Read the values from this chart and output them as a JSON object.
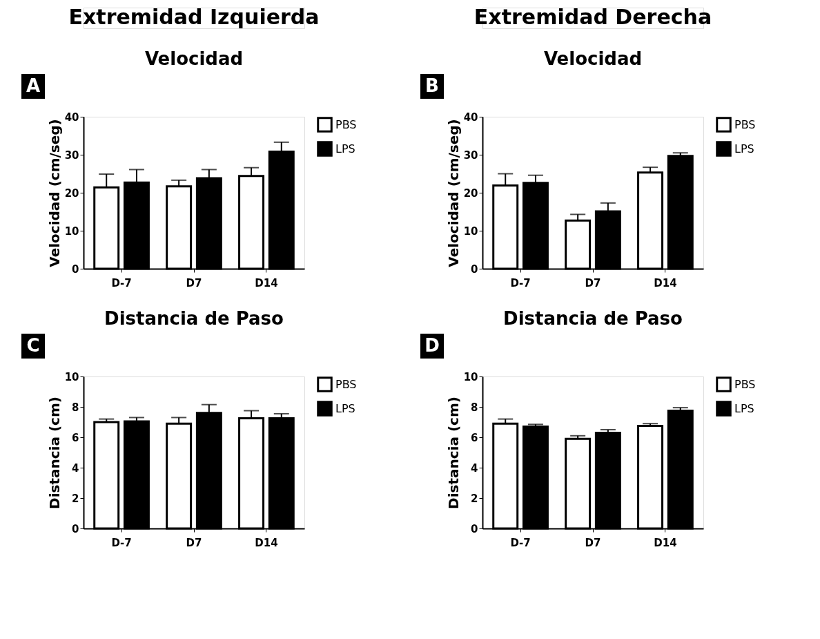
{
  "chart_data": [
    {
      "type": "bar",
      "title": "Velocidad",
      "annotations": [
        "Extremidad Izquierda",
        "A"
      ],
      "ylabel": "Velocidad (cm/seg)",
      "categories": [
        "D-7",
        "D7",
        "D14"
      ],
      "ylim": [
        0,
        40
      ],
      "yticks": [
        0,
        10,
        20,
        30,
        40
      ],
      "grid": false,
      "legend": "top right",
      "series": [
        {
          "name": "PBS",
          "color": "#ffffff",
          "values": [
            21.4,
            21.7,
            24.4
          ],
          "errors": [
            [
              21.4,
              24.9
            ],
            [
              21.7,
              23.3
            ],
            [
              24.4,
              26.6
            ]
          ]
        },
        {
          "name": "LPS",
          "color": "#000000",
          "values": [
            22.7,
            23.8,
            30.8
          ],
          "errors": [
            [
              22.7,
              26.1
            ],
            [
              23.8,
              26.1
            ],
            [
              30.8,
              33.3
            ]
          ]
        }
      ]
    },
    {
      "type": "bar",
      "title": "Velocidad",
      "annotations": [
        "Extremidad Derecha",
        "B"
      ],
      "ylabel": "Velocidad (cm/seg)",
      "categories": [
        "D-7",
        "D7",
        "D14"
      ],
      "ylim": [
        0,
        40
      ],
      "yticks": [
        0,
        10,
        20,
        30,
        40
      ],
      "grid": false,
      "legend": "top right",
      "series": [
        {
          "name": "PBS",
          "color": "#ffffff",
          "values": [
            21.9,
            12.7,
            25.3
          ],
          "errors": [
            [
              21.9,
              25.0
            ],
            [
              12.7,
              14.3
            ],
            [
              25.3,
              26.7
            ]
          ]
        },
        {
          "name": "LPS",
          "color": "#000000",
          "values": [
            22.6,
            15.1,
            29.7
          ],
          "errors": [
            [
              22.6,
              24.6
            ],
            [
              15.1,
              17.3
            ],
            [
              29.7,
              30.5
            ]
          ]
        }
      ]
    },
    {
      "type": "bar",
      "title": "Distancia de Paso",
      "annotations": [
        "C"
      ],
      "ylabel": "Distancia (cm)",
      "categories": [
        "D-7",
        "D7",
        "D14"
      ],
      "ylim": [
        0,
        10
      ],
      "yticks": [
        0,
        2,
        4,
        6,
        8,
        10
      ],
      "grid": false,
      "legend": "top right",
      "series": [
        {
          "name": "PBS",
          "color": "#ffffff",
          "values": [
            7.0,
            6.9,
            7.25
          ],
          "errors": [
            [
              7.0,
              7.2
            ],
            [
              6.9,
              7.3
            ],
            [
              7.25,
              7.75
            ]
          ]
        },
        {
          "name": "LPS",
          "color": "#000000",
          "values": [
            7.05,
            7.6,
            7.25
          ],
          "errors": [
            [
              7.05,
              7.3
            ],
            [
              7.6,
              8.15
            ],
            [
              7.25,
              7.55
            ]
          ]
        }
      ]
    },
    {
      "type": "bar",
      "title": "Distancia de Paso",
      "annotations": [
        "D"
      ],
      "ylabel": "Distancia (cm)",
      "categories": [
        "D-7",
        "D7",
        "D14"
      ],
      "ylim": [
        0,
        10
      ],
      "yticks": [
        0,
        2,
        4,
        6,
        8,
        10
      ],
      "grid": false,
      "legend": "top right",
      "series": [
        {
          "name": "PBS",
          "color": "#ffffff",
          "values": [
            6.9,
            5.9,
            6.75
          ],
          "errors": [
            [
              6.9,
              7.2
            ],
            [
              5.9,
              6.1
            ],
            [
              6.75,
              6.9
            ]
          ]
        },
        {
          "name": "LPS",
          "color": "#000000",
          "values": [
            6.7,
            6.3,
            7.75
          ],
          "errors": [
            [
              6.7,
              6.85
            ],
            [
              6.3,
              6.5
            ],
            [
              7.75,
              7.95
            ]
          ]
        }
      ]
    }
  ]
}
